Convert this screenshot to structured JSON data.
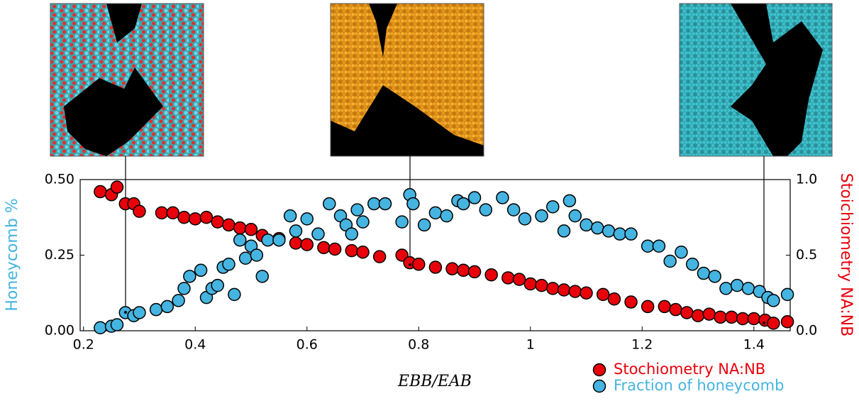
{
  "chart_data": {
    "type": "scatter",
    "xlabel": "EBB/EAB",
    "ylabel": "Honeycomb %",
    "y2label": "Stoichiometry NA:NB",
    "xlim": [
      0.194,
      1.465
    ],
    "ylim": [
      0,
      0.5
    ],
    "y2lim": [
      0,
      1
    ],
    "xticks": [
      0.2,
      0.4,
      0.6,
      0.8,
      1,
      1.2,
      1.4
    ],
    "yticks": [
      {
        "value": 0,
        "label": "0.00"
      },
      {
        "value": 0.25,
        "label": "0.25"
      },
      {
        "value": 0.5,
        "label": "0.50"
      }
    ],
    "y2ticks": [
      {
        "value": 0,
        "label": "0.0"
      },
      {
        "value": 0.5,
        "label": "0.5"
      },
      {
        "value": 1,
        "label": "1.0"
      }
    ],
    "legend": "lower right",
    "series": [
      {
        "name": "Stochiometry NA:NB",
        "color": "#e8000b",
        "axis": "y2",
        "x": [
          0.23,
          0.25,
          0.26,
          0.275,
          0.29,
          0.3,
          0.34,
          0.36,
          0.38,
          0.4,
          0.42,
          0.44,
          0.46,
          0.48,
          0.5,
          0.52,
          0.55,
          0.58,
          0.6,
          0.63,
          0.65,
          0.68,
          0.7,
          0.73,
          0.77,
          0.784,
          0.8,
          0.83,
          0.86,
          0.88,
          0.9,
          0.93,
          0.96,
          0.98,
          1.0,
          1.02,
          1.04,
          1.06,
          1.08,
          1.1,
          1.13,
          1.15,
          1.18,
          1.21,
          1.24,
          1.26,
          1.28,
          1.3,
          1.32,
          1.34,
          1.36,
          1.38,
          1.4,
          1.42,
          1.435,
          1.46
        ],
        "values": [
          0.92,
          0.9,
          0.95,
          0.84,
          0.84,
          0.79,
          0.78,
          0.78,
          0.75,
          0.74,
          0.75,
          0.72,
          0.7,
          0.68,
          0.67,
          0.63,
          0.61,
          0.58,
          0.57,
          0.55,
          0.54,
          0.53,
          0.52,
          0.49,
          0.5,
          0.45,
          0.44,
          0.42,
          0.41,
          0.4,
          0.39,
          0.37,
          0.35,
          0.34,
          0.31,
          0.3,
          0.28,
          0.27,
          0.26,
          0.25,
          0.24,
          0.21,
          0.19,
          0.16,
          0.16,
          0.14,
          0.12,
          0.1,
          0.11,
          0.09,
          0.09,
          0.08,
          0.08,
          0.07,
          0.05,
          0.06
        ]
      },
      {
        "name": "Fraction of honeycomb",
        "color": "#45b4e0",
        "axis": "y",
        "x": [
          0.23,
          0.25,
          0.26,
          0.275,
          0.29,
          0.3,
          0.33,
          0.35,
          0.37,
          0.38,
          0.39,
          0.41,
          0.42,
          0.43,
          0.44,
          0.45,
          0.46,
          0.47,
          0.48,
          0.49,
          0.5,
          0.51,
          0.52,
          0.53,
          0.55,
          0.57,
          0.58,
          0.6,
          0.62,
          0.64,
          0.66,
          0.67,
          0.68,
          0.69,
          0.7,
          0.72,
          0.74,
          0.77,
          0.784,
          0.79,
          0.81,
          0.83,
          0.85,
          0.87,
          0.88,
          0.9,
          0.92,
          0.95,
          0.97,
          0.99,
          1.02,
          1.04,
          1.06,
          1.07,
          1.08,
          1.1,
          1.12,
          1.14,
          1.16,
          1.18,
          1.21,
          1.23,
          1.25,
          1.27,
          1.29,
          1.31,
          1.33,
          1.35,
          1.37,
          1.39,
          1.41,
          1.425,
          1.435,
          1.46
        ],
        "values": [
          0.01,
          0.015,
          0.02,
          0.06,
          0.05,
          0.06,
          0.07,
          0.08,
          0.1,
          0.14,
          0.18,
          0.2,
          0.11,
          0.14,
          0.15,
          0.21,
          0.22,
          0.12,
          0.3,
          0.24,
          0.28,
          0.25,
          0.18,
          0.3,
          0.3,
          0.38,
          0.33,
          0.37,
          0.32,
          0.42,
          0.38,
          0.35,
          0.32,
          0.4,
          0.36,
          0.42,
          0.42,
          0.36,
          0.45,
          0.42,
          0.35,
          0.39,
          0.38,
          0.43,
          0.42,
          0.44,
          0.4,
          0.44,
          0.4,
          0.37,
          0.38,
          0.41,
          0.33,
          0.43,
          0.38,
          0.35,
          0.34,
          0.33,
          0.32,
          0.32,
          0.28,
          0.28,
          0.23,
          0.26,
          0.22,
          0.19,
          0.18,
          0.14,
          0.15,
          0.14,
          0.13,
          0.11,
          0.1,
          0.12
        ]
      }
    ]
  }
}
